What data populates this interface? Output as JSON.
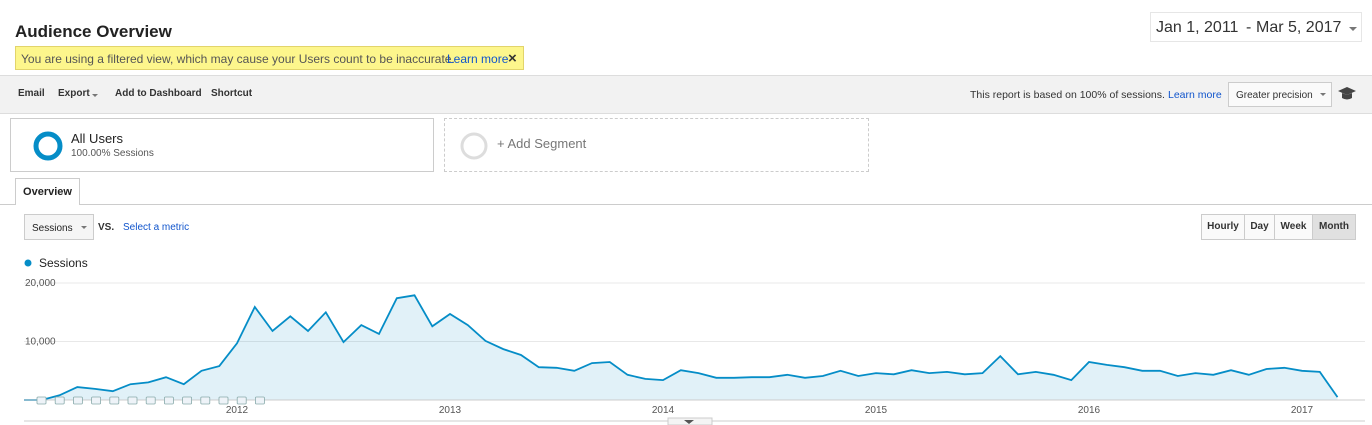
{
  "header": {
    "title": "Audience Overview",
    "date_start": "Jan 1, 2011",
    "date_separator": "-",
    "date_end": "Mar 5, 2017",
    "warning": "You are using a filtered view, which may cause your Users count to be inaccurate.",
    "warning_link": "Learn more"
  },
  "toolbar": {
    "items": [
      "Email",
      "Export",
      "Add to Dashboard",
      "Shortcut"
    ],
    "sampling_note": "This report is based on 100% of sessions.",
    "sampling_link": "Learn more",
    "precision": "Greater precision"
  },
  "segments": {
    "active": {
      "name": "All Users",
      "detail": "100.00% Sessions"
    },
    "add": "+ Add Segment"
  },
  "tabs": [
    "Overview"
  ],
  "chart_controls": {
    "metric": "Sessions",
    "vs": "VS.",
    "select_metric": "Select a metric",
    "granularity": [
      "Hourly",
      "Day",
      "Week",
      "Month"
    ]
  },
  "chart_data": {
    "type": "line",
    "categories": [
      null,
      null,
      null,
      null,
      null,
      null,
      null,
      null,
      null,
      null,
      null,
      null,
      "2012",
      null,
      null,
      null,
      null,
      null,
      null,
      null,
      null,
      null,
      null,
      null,
      "2013",
      null,
      null,
      null,
      null,
      null,
      null,
      null,
      null,
      null,
      null,
      null,
      "2014",
      null,
      null,
      null,
      null,
      null,
      null,
      null,
      null,
      null,
      null,
      null,
      "2015",
      null,
      null,
      null,
      null,
      null,
      null,
      null,
      null,
      null,
      null,
      null,
      "2016",
      null,
      null,
      null,
      null,
      null,
      null,
      null,
      null,
      null,
      null,
      null,
      "2017",
      null,
      null
    ],
    "series": [
      {
        "name": "Sessions",
        "color": "#058dc7",
        "values": [
          0,
          0,
          800,
          2200,
          1900,
          1500,
          2700,
          3000,
          3900,
          2700,
          5000,
          5800,
          9700,
          15900,
          11800,
          14300,
          11800,
          15000,
          9900,
          12800,
          11300,
          17400,
          17900,
          12600,
          14700,
          12800,
          10100,
          8700,
          7700,
          5600,
          5500,
          5000,
          6300,
          6500,
          4300,
          3600,
          3400,
          5100,
          4600,
          3800,
          3800,
          3900,
          3900,
          4300,
          3800,
          4100,
          5000,
          4100,
          4600,
          4400,
          5100,
          4600,
          4800,
          4400,
          4600,
          7500,
          4400,
          4800,
          4300,
          3400,
          6500,
          6000,
          5600,
          5000,
          5000,
          4100,
          4600,
          4300,
          5100,
          4300,
          5300,
          5500,
          5000,
          4800,
          500
        ]
      }
    ],
    "ylim": [
      0,
      20000
    ],
    "yticks": [
      {
        "value": 10000,
        "label": "10,000"
      },
      {
        "value": 20000,
        "label": "20,000"
      }
    ],
    "grid": true,
    "area": true
  }
}
